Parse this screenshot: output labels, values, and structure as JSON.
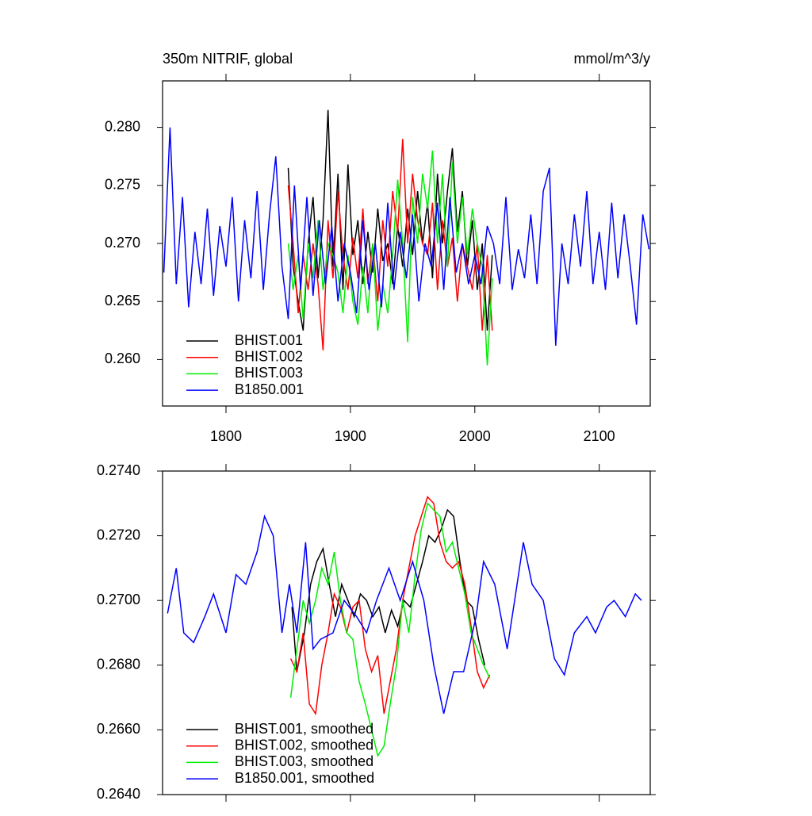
{
  "chart_data": [
    {
      "type": "line",
      "title": "350m NITRIF, global",
      "units": "mmol/m^3/y",
      "xlim": [
        1749,
        2141
      ],
      "xticks": [
        1800,
        1900,
        2000,
        2100
      ],
      "ylim": [
        0.256,
        0.284
      ],
      "yticks": [
        {
          "value": 0.26,
          "label": "0.260"
        },
        {
          "value": 0.265,
          "label": "0.265"
        },
        {
          "value": 0.27,
          "label": "0.270"
        },
        {
          "value": 0.275,
          "label": "0.275"
        },
        {
          "value": 0.28,
          "label": "0.280"
        }
      ],
      "legend": "lower left",
      "series": [
        {
          "name": "BHIST.001",
          "color": "#000000",
          "x": [
            1850,
            1854,
            1858,
            1862,
            1866,
            1870,
            1874,
            1878,
            1882,
            1886,
            1890,
            1894,
            1898,
            1902,
            1906,
            1910,
            1914,
            1918,
            1922,
            1926,
            1930,
            1934,
            1938,
            1942,
            1946,
            1950,
            1954,
            1958,
            1962,
            1966,
            1970,
            1974,
            1978,
            1982,
            1986,
            1990,
            1994,
            1998,
            2002,
            2006,
            2010,
            2014
          ],
          "values": [
            0.2765,
            0.268,
            0.265,
            0.2625,
            0.27,
            0.274,
            0.267,
            0.272,
            0.2815,
            0.268,
            0.276,
            0.266,
            0.2768,
            0.269,
            0.272,
            0.2665,
            0.271,
            0.2675,
            0.273,
            0.2685,
            0.27,
            0.2665,
            0.2715,
            0.268,
            0.273,
            0.269,
            0.2745,
            0.27,
            0.2735,
            0.267,
            0.276,
            0.27,
            0.2745,
            0.2782,
            0.271,
            0.2745,
            0.268,
            0.272,
            0.266,
            0.27,
            0.2625,
            0.269
          ]
        },
        {
          "name": "BHIST.002",
          "color": "#ff0000",
          "x": [
            1850,
            1854,
            1858,
            1862,
            1866,
            1870,
            1874,
            1878,
            1882,
            1886,
            1890,
            1894,
            1898,
            1902,
            1906,
            1910,
            1914,
            1918,
            1922,
            1926,
            1930,
            1934,
            1938,
            1942,
            1946,
            1950,
            1954,
            1958,
            1962,
            1966,
            1970,
            1974,
            1978,
            1982,
            1986,
            1990,
            1994,
            1998,
            2002,
            2006,
            2010,
            2014
          ],
          "values": [
            0.275,
            0.27,
            0.264,
            0.269,
            0.266,
            0.27,
            0.2665,
            0.2608,
            0.272,
            0.267,
            0.2745,
            0.269,
            0.266,
            0.2705,
            0.267,
            0.273,
            0.2665,
            0.27,
            0.265,
            0.272,
            0.268,
            0.2745,
            0.271,
            0.279,
            0.27,
            0.276,
            0.272,
            0.27,
            0.269,
            0.2735,
            0.266,
            0.272,
            0.268,
            0.2705,
            0.265,
            0.27,
            0.268,
            0.266,
            0.27,
            0.2625,
            0.269,
            0.2625
          ]
        },
        {
          "name": "BHIST.003",
          "color": "#00ee00",
          "x": [
            1850,
            1854,
            1858,
            1862,
            1866,
            1870,
            1874,
            1878,
            1882,
            1886,
            1890,
            1894,
            1898,
            1902,
            1906,
            1910,
            1914,
            1918,
            1922,
            1926,
            1930,
            1934,
            1938,
            1942,
            1946,
            1950,
            1954,
            1958,
            1962,
            1966,
            1970,
            1974,
            1978,
            1982,
            1986,
            1990,
            1994,
            1998,
            2002,
            2006,
            2010,
            2014
          ],
          "values": [
            0.27,
            0.266,
            0.269,
            0.2635,
            0.27,
            0.267,
            0.272,
            0.266,
            0.27,
            0.269,
            0.2675,
            0.264,
            0.269,
            0.265,
            0.263,
            0.268,
            0.264,
            0.27,
            0.2625,
            0.2665,
            0.264,
            0.269,
            0.2755,
            0.27,
            0.2615,
            0.274,
            0.27,
            0.276,
            0.273,
            0.278,
            0.27,
            0.276,
            0.268,
            0.277,
            0.27,
            0.274,
            0.269,
            0.273,
            0.27,
            0.268,
            0.2595,
            0.267
          ]
        },
        {
          "name": "B1850.001",
          "color": "#0000ff",
          "x": [
            1750,
            1755,
            1760,
            1765,
            1770,
            1775,
            1780,
            1785,
            1790,
            1795,
            1800,
            1805,
            1810,
            1815,
            1820,
            1825,
            1830,
            1835,
            1840,
            1845,
            1850,
            1855,
            1860,
            1865,
            1870,
            1875,
            1880,
            1885,
            1890,
            1895,
            1900,
            1905,
            1910,
            1915,
            1920,
            1925,
            1930,
            1935,
            1940,
            1945,
            1950,
            1955,
            1960,
            1965,
            1970,
            1975,
            1980,
            1985,
            1990,
            1995,
            2000,
            2005,
            2010,
            2015,
            2020,
            2025,
            2030,
            2035,
            2040,
            2045,
            2050,
            2055,
            2060,
            2065,
            2070,
            2075,
            2080,
            2085,
            2090,
            2095,
            2100,
            2105,
            2110,
            2115,
            2120,
            2125,
            2130,
            2135,
            2140
          ],
          "values": [
            0.2675,
            0.28,
            0.2665,
            0.274,
            0.2645,
            0.271,
            0.2665,
            0.273,
            0.2655,
            0.2715,
            0.268,
            0.274,
            0.265,
            0.272,
            0.267,
            0.2745,
            0.266,
            0.2725,
            0.2775,
            0.268,
            0.2635,
            0.275,
            0.266,
            0.274,
            0.2655,
            0.272,
            0.2665,
            0.2715,
            0.265,
            0.27,
            0.2675,
            0.264,
            0.272,
            0.266,
            0.27,
            0.2645,
            0.2735,
            0.266,
            0.271,
            0.267,
            0.2725,
            0.265,
            0.27,
            0.268,
            0.2735,
            0.266,
            0.274,
            0.2675,
            0.27,
            0.2665,
            0.269,
            0.2665,
            0.2715,
            0.27,
            0.2665,
            0.274,
            0.266,
            0.2695,
            0.267,
            0.2725,
            0.2665,
            0.2745,
            0.2765,
            0.2612,
            0.27,
            0.2665,
            0.2725,
            0.268,
            0.2745,
            0.2665,
            0.271,
            0.266,
            0.2735,
            0.267,
            0.2725,
            0.268,
            0.263,
            0.2725,
            0.2695
          ]
        }
      ]
    },
    {
      "type": "line",
      "xlim": [
        1749,
        2141
      ],
      "xticks": [
        1800,
        1900,
        2000,
        2100
      ],
      "ylim": [
        0.264,
        0.274
      ],
      "yticks": [
        {
          "value": 0.264,
          "label": "0.2640"
        },
        {
          "value": 0.266,
          "label": "0.2660"
        },
        {
          "value": 0.268,
          "label": "0.2680"
        },
        {
          "value": 0.27,
          "label": "0.2700"
        },
        {
          "value": 0.272,
          "label": "0.2720"
        },
        {
          "value": 0.274,
          "label": "0.2740"
        }
      ],
      "legend": "lower left",
      "series": [
        {
          "name": "BHIST.001, smoothed",
          "color": "#000000",
          "x": [
            1853,
            1857,
            1863,
            1868,
            1873,
            1878,
            1883,
            1888,
            1893,
            1898,
            1903,
            1908,
            1913,
            1918,
            1923,
            1928,
            1933,
            1938,
            1943,
            1948,
            1953,
            1958,
            1963,
            1968,
            1973,
            1978,
            1983,
            1988,
            1993,
            1998,
            2003,
            2008
          ],
          "values": [
            0.2698,
            0.2678,
            0.269,
            0.2705,
            0.2712,
            0.2716,
            0.2705,
            0.2695,
            0.2705,
            0.27,
            0.2695,
            0.2702,
            0.27,
            0.2695,
            0.2698,
            0.269,
            0.2697,
            0.2692,
            0.27,
            0.2698,
            0.2705,
            0.2712,
            0.272,
            0.2718,
            0.2722,
            0.2728,
            0.2726,
            0.2712,
            0.27,
            0.2698,
            0.2688,
            0.268
          ]
        },
        {
          "name": "BHIST.002, smoothed",
          "color": "#ff0000",
          "x": [
            1852,
            1857,
            1862,
            1867,
            1872,
            1877,
            1882,
            1887,
            1892,
            1897,
            1902,
            1907,
            1912,
            1917,
            1922,
            1927,
            1932,
            1937,
            1942,
            1947,
            1952,
            1957,
            1962,
            1967,
            1972,
            1977,
            1982,
            1987,
            1992,
            1997,
            2002,
            2007,
            2012
          ],
          "values": [
            0.2682,
            0.2678,
            0.269,
            0.2668,
            0.2665,
            0.268,
            0.269,
            0.2702,
            0.2698,
            0.269,
            0.2698,
            0.27,
            0.2685,
            0.2678,
            0.2683,
            0.2665,
            0.2675,
            0.2685,
            0.27,
            0.271,
            0.272,
            0.2726,
            0.2732,
            0.273,
            0.2718,
            0.2712,
            0.271,
            0.2712,
            0.2705,
            0.2692,
            0.2678,
            0.2673,
            0.2677
          ]
        },
        {
          "name": "BHIST.003, smoothed",
          "color": "#00ee00",
          "x": [
            1852,
            1857,
            1862,
            1867,
            1872,
            1877,
            1882,
            1887,
            1892,
            1897,
            1902,
            1907,
            1912,
            1917,
            1922,
            1927,
            1932,
            1937,
            1942,
            1947,
            1952,
            1957,
            1962,
            1967,
            1972,
            1977,
            1982,
            1987,
            1992,
            1997,
            2002,
            2007,
            2012
          ],
          "values": [
            0.267,
            0.2685,
            0.27,
            0.2693,
            0.27,
            0.271,
            0.2705,
            0.2715,
            0.27,
            0.269,
            0.2688,
            0.2675,
            0.2668,
            0.266,
            0.2652,
            0.2655,
            0.2668,
            0.268,
            0.27,
            0.269,
            0.2708,
            0.2722,
            0.273,
            0.2728,
            0.2726,
            0.2715,
            0.2718,
            0.271,
            0.2702,
            0.269,
            0.2685,
            0.268,
            0.2676
          ]
        },
        {
          "name": "B1850.001, smoothed",
          "color": "#0000ff",
          "x": [
            1753,
            1760,
            1766,
            1774,
            1783,
            1790,
            1800,
            1808,
            1816,
            1825,
            1831,
            1838,
            1845,
            1851,
            1857,
            1864,
            1870,
            1876,
            1886,
            1895,
            1905,
            1913,
            1921,
            1931,
            1940,
            1950,
            1959,
            1967,
            1975,
            1983,
            1991,
            2001,
            2007,
            2016,
            2026,
            2032,
            2039,
            2046,
            2055,
            2064,
            2072,
            2080,
            2090,
            2097,
            2106,
            2112,
            2121,
            2129,
            2134
          ],
          "values": [
            0.2696,
            0.271,
            0.269,
            0.2687,
            0.2695,
            0.2702,
            0.269,
            0.2708,
            0.2705,
            0.2715,
            0.2726,
            0.272,
            0.269,
            0.2705,
            0.269,
            0.2718,
            0.2685,
            0.2688,
            0.269,
            0.27,
            0.2695,
            0.269,
            0.27,
            0.271,
            0.27,
            0.2712,
            0.27,
            0.268,
            0.2665,
            0.2678,
            0.2678,
            0.2695,
            0.2712,
            0.2705,
            0.2685,
            0.27,
            0.2718,
            0.2705,
            0.27,
            0.2682,
            0.2677,
            0.269,
            0.2695,
            0.269,
            0.2698,
            0.27,
            0.2695,
            0.2702,
            0.27
          ]
        }
      ]
    }
  ]
}
